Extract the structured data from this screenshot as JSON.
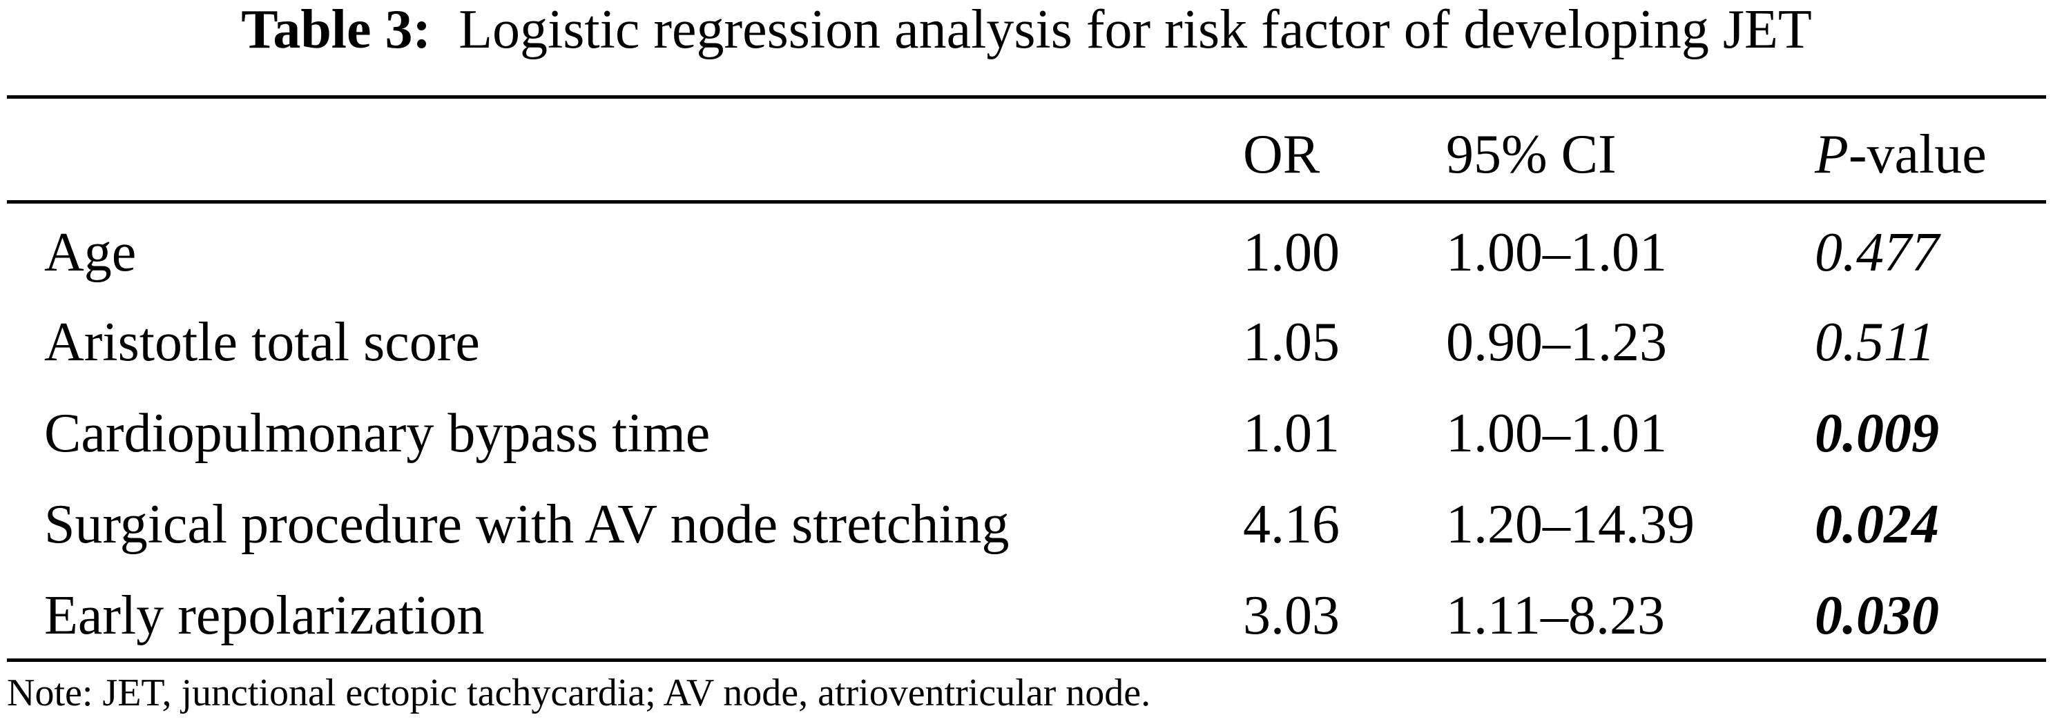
{
  "caption": {
    "label": "Table 3:",
    "text": "Logistic regression analysis for risk factor of developing JET"
  },
  "columns": {
    "or": "OR",
    "ci": "95% CI",
    "p_letter": "P",
    "p_suffix": "-value"
  },
  "rows": [
    {
      "name": "Age",
      "or": "1.00",
      "ci": "1.00–1.01",
      "p": "0.477",
      "significant": false
    },
    {
      "name": "Aristotle total score",
      "or": "1.05",
      "ci": "0.90–1.23",
      "p": "0.511",
      "significant": false
    },
    {
      "name": "Cardiopulmonary bypass time",
      "or": "1.01",
      "ci": "1.00–1.01",
      "p": "0.009",
      "significant": true
    },
    {
      "name": "Surgical procedure with AV node stretching",
      "or": "4.16",
      "ci": "1.20–14.39",
      "p": "0.024",
      "significant": true
    },
    {
      "name": "Early repolarization",
      "or": "3.03",
      "ci": "1.11–8.23",
      "p": "0.030",
      "significant": true
    }
  ],
  "note": "Note: JET, junctional ectopic tachycardia; AV node, atrioventricular node."
}
